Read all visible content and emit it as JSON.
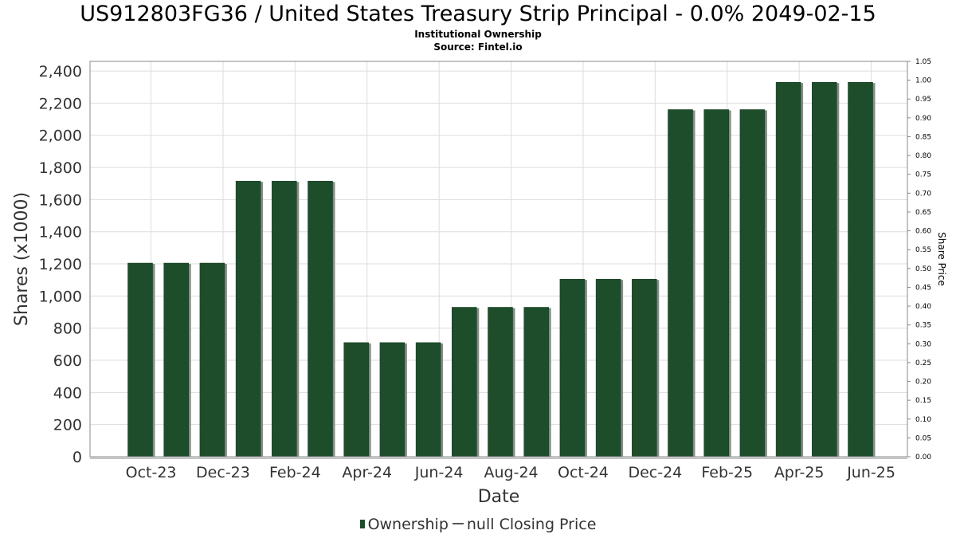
{
  "header": {
    "title": "US912803FG36 / United States Treasury Strip Principal - 0.0% 2049-02-15",
    "subtitle": "Institutional Ownership",
    "source": "Source: Fintel.io"
  },
  "legend": {
    "ownership_label": "Ownership",
    "price_label": "null Closing Price"
  },
  "colors": {
    "bar": "#1e4d2b",
    "bar_shadow": "#8a8a8a",
    "grid": "#dddddd"
  },
  "chart_data": {
    "type": "bar",
    "xlabel": "Date",
    "ylabel": "Shares (x1000)",
    "y2label": "Share Price",
    "ylim": [
      0,
      2460
    ],
    "y2lim": [
      0,
      1.05
    ],
    "yticks": [
      0,
      200,
      400,
      600,
      800,
      1000,
      1200,
      1400,
      1600,
      1800,
      2000,
      2200,
      2400
    ],
    "yticklabels": [
      "0",
      "200",
      "400",
      "600",
      "800",
      "1,000",
      "1,200",
      "1,400",
      "1,600",
      "1,800",
      "2,000",
      "2,200",
      "2,400"
    ],
    "y2ticklabels": [
      "0.00",
      "0.05",
      "0.10",
      "0.15",
      "0.20",
      "0.25",
      "0.30",
      "0.35",
      "0.40",
      "0.45",
      "0.50",
      "0.55",
      "0.60",
      "0.65",
      "0.70",
      "0.75",
      "0.80",
      "0.85",
      "0.90",
      "0.95",
      "1.00",
      "1.05"
    ],
    "xticklabels": [
      "Oct-23",
      "Dec-23",
      "Feb-24",
      "Apr-24",
      "Jun-24",
      "Aug-24",
      "Oct-24",
      "Dec-24",
      "Feb-25",
      "Apr-25",
      "Jun-25"
    ],
    "grid": true,
    "legend_position": "bottom",
    "series": [
      {
        "name": "Ownership",
        "values": [
          1205,
          1205,
          1205,
          1715,
          1715,
          1715,
          710,
          710,
          710,
          930,
          930,
          930,
          1105,
          1105,
          1105,
          2160,
          2160,
          2160,
          2330,
          2330,
          2330
        ]
      }
    ]
  }
}
